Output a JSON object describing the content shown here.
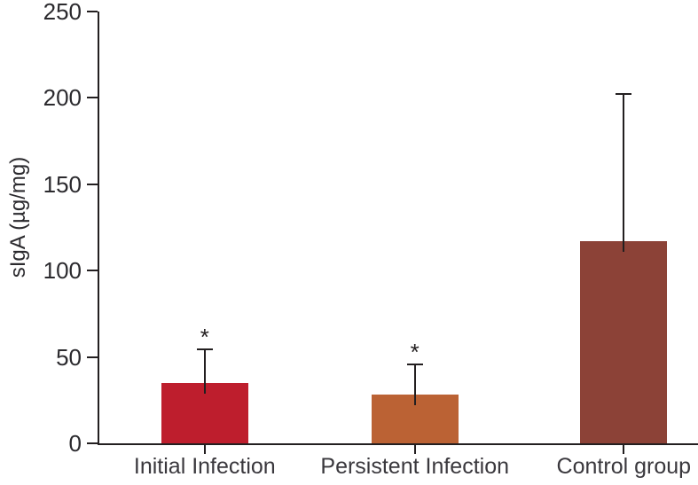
{
  "chart_data": {
    "type": "bar",
    "title": "",
    "xlabel": "",
    "ylabel": "sIgA (µg/mg)",
    "categories": [
      "Initial Infection",
      "Persistent Infection",
      "Control group"
    ],
    "values": [
      35,
      28,
      117
    ],
    "error_sd_upper": [
      20,
      18,
      86
    ],
    "error_bar_tops": [
      55,
      46,
      203
    ],
    "significance_labels": [
      "*",
      "*",
      ""
    ],
    "bar_colors": [
      "#be1e2d",
      "#bb6234",
      "#8c4237"
    ],
    "ylim": [
      0,
      250
    ],
    "yticks": [
      0,
      50,
      100,
      150,
      200,
      250
    ],
    "grid": false,
    "legend": false,
    "error_bar_style": "one-sided-upper",
    "axis_line_color": "#231f20",
    "tick_text_color": "#2b2a2e",
    "category_text_color": "#3a383d",
    "background_color": "#ffffff"
  }
}
